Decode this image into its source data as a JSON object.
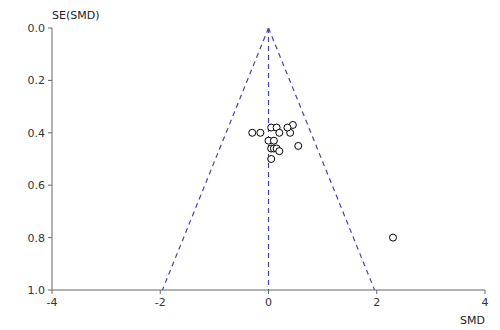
{
  "chart_data": {
    "type": "scatter",
    "xlabel": "SMD",
    "ylabel": "SE(SMD)",
    "xlim": [
      -4,
      4
    ],
    "ylim": [
      1.0,
      0.0
    ],
    "xticks": [
      -4,
      -2,
      0,
      2,
      4
    ],
    "yticks": [
      {
        "value": 0,
        "label": "0.0"
      },
      0.2,
      0.4,
      0.6,
      0.8,
      {
        "value": 1.0,
        "label": "1.0"
      }
    ],
    "grid": false,
    "series": [
      {
        "type": "scatter",
        "marker": "circle",
        "color": "white",
        "x": [
          -0.3,
          -0.15,
          0.0,
          0.05,
          0.1,
          0.15,
          0.05,
          0.1,
          0.15,
          0.2,
          0.05,
          0.2,
          0.4,
          0.45,
          0.55,
          0.35,
          2.3
        ],
        "values": [
          0.4,
          0.4,
          0.43,
          0.38,
          0.43,
          0.38,
          0.46,
          0.46,
          0.46,
          0.47,
          0.5,
          0.4,
          0.4,
          0.37,
          0.45,
          0.38,
          0.8
        ]
      },
      {
        "type": "line",
        "line_style": "dashed",
        "color": "#4444aa",
        "x": [
          0.0,
          -1.96
        ],
        "values": [
          0.0,
          1.0
        ]
      },
      {
        "type": "line",
        "line_style": "dashed",
        "color": "#4444aa",
        "x": [
          0.0,
          1.96
        ],
        "values": [
          0.0,
          1.0
        ]
      },
      {
        "type": "line",
        "line_style": "dashed",
        "color": "#4444aa",
        "x": [
          0.0,
          0.0
        ],
        "values": [
          0.0,
          1.0
        ]
      }
    ]
  }
}
